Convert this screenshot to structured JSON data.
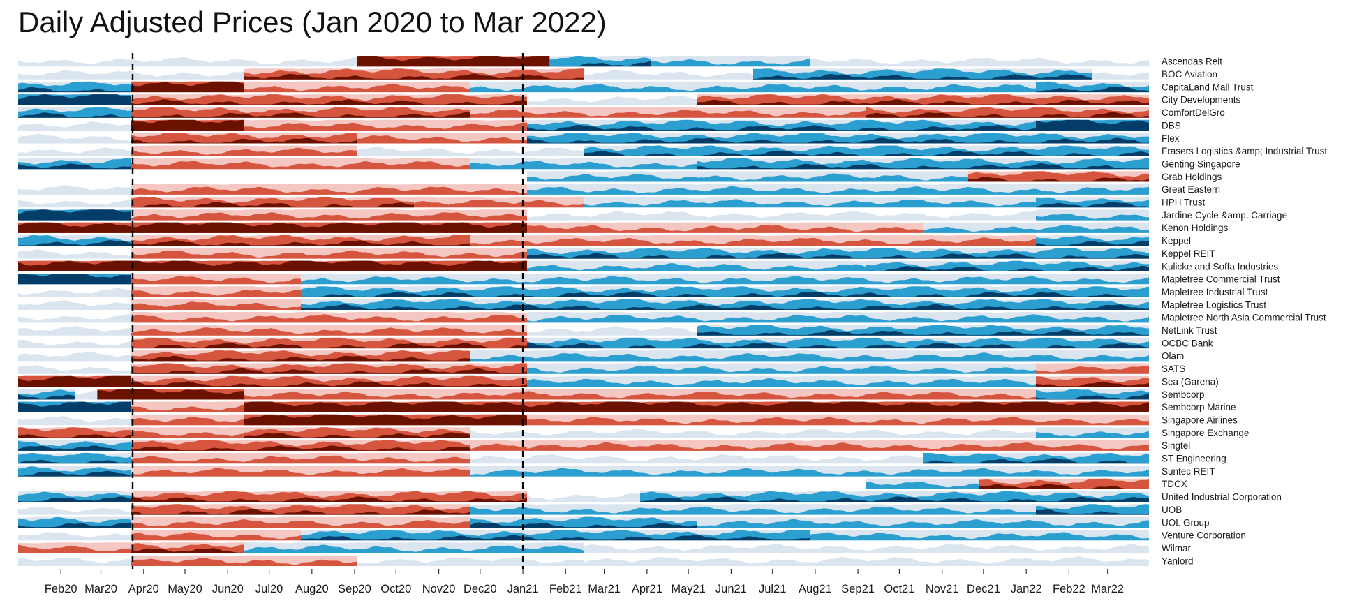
{
  "title": "Daily Adjusted Prices (Jan 2020 to Mar 2022)",
  "chart_data": {
    "type": "area",
    "subtype": "horizon",
    "x_range": [
      "2020-01-01",
      "2022-03-31"
    ],
    "x_ticks": [
      {
        "date": "2020-02-01",
        "label": "Feb20"
      },
      {
        "date": "2020-03-01",
        "label": "Mar20"
      },
      {
        "date": "2020-04-01",
        "label": "Apr20"
      },
      {
        "date": "2020-05-01",
        "label": "May20"
      },
      {
        "date": "2020-06-01",
        "label": "Jun20"
      },
      {
        "date": "2020-07-01",
        "label": "Jul20"
      },
      {
        "date": "2020-08-01",
        "label": "Aug20"
      },
      {
        "date": "2020-09-01",
        "label": "Sep20"
      },
      {
        "date": "2020-10-01",
        "label": "Oct20"
      },
      {
        "date": "2020-11-01",
        "label": "Nov20"
      },
      {
        "date": "2020-12-01",
        "label": "Dec20"
      },
      {
        "date": "2021-01-01",
        "label": "Jan21"
      },
      {
        "date": "2021-02-01",
        "label": "Feb21"
      },
      {
        "date": "2021-03-01",
        "label": "Mar21"
      },
      {
        "date": "2021-04-01",
        "label": "Apr21"
      },
      {
        "date": "2021-05-01",
        "label": "May21"
      },
      {
        "date": "2021-06-01",
        "label": "Jun21"
      },
      {
        "date": "2021-07-01",
        "label": "Jul21"
      },
      {
        "date": "2021-08-01",
        "label": "Aug21"
      },
      {
        "date": "2021-09-01",
        "label": "Sep21"
      },
      {
        "date": "2021-10-01",
        "label": "Oct21"
      },
      {
        "date": "2021-11-01",
        "label": "Nov21"
      },
      {
        "date": "2021-12-01",
        "label": "Dec21"
      },
      {
        "date": "2022-01-01",
        "label": "Jan22"
      },
      {
        "date": "2022-02-01",
        "label": "Feb22"
      },
      {
        "date": "2022-03-01",
        "label": "Mar22"
      }
    ],
    "reference_lines": [
      "2020-03-24",
      "2021-01-01"
    ],
    "colors": {
      "positive": [
        "#dbe5ef",
        "#2b9fcf",
        "#033d68"
      ],
      "negative": [
        "#f4c7c2",
        "#d6553e",
        "#6b1100"
      ]
    },
    "grid": false,
    "legend": "none",
    "series": [
      {
        "name": "Ascendas Reit",
        "segments": [
          [
            0,
            0.3,
            0
          ],
          [
            0.3,
            0.47,
            -3
          ],
          [
            0.47,
            0.56,
            2
          ],
          [
            0.56,
            0.7,
            1
          ],
          [
            0.7,
            1,
            0
          ]
        ]
      },
      {
        "name": "BOC Aviation",
        "segments": [
          [
            0,
            0.2,
            0
          ],
          [
            0.2,
            0.5,
            -2
          ],
          [
            0.5,
            0.65,
            0
          ],
          [
            0.65,
            0.95,
            2
          ],
          [
            0.95,
            1,
            0
          ]
        ]
      },
      {
        "name": "CapitaLand Mall Trust",
        "segments": [
          [
            0,
            0.1,
            2
          ],
          [
            0.1,
            0.2,
            -3
          ],
          [
            0.2,
            0.4,
            -1
          ],
          [
            0.4,
            0.9,
            1
          ],
          [
            0.9,
            1,
            2
          ]
        ]
      },
      {
        "name": "City Developments",
        "segments": [
          [
            0,
            0.1,
            3
          ],
          [
            0.1,
            0.45,
            -2
          ],
          [
            0.45,
            0.6,
            0
          ],
          [
            0.6,
            1,
            -2
          ]
        ]
      },
      {
        "name": "ComfortDelGro",
        "segments": [
          [
            0,
            0.1,
            2
          ],
          [
            0.1,
            0.4,
            -2
          ],
          [
            0.4,
            0.75,
            -1
          ],
          [
            0.75,
            1,
            -2
          ]
        ]
      },
      {
        "name": "DBS",
        "segments": [
          [
            0,
            0.1,
            0
          ],
          [
            0.1,
            0.2,
            -3
          ],
          [
            0.2,
            0.45,
            -1
          ],
          [
            0.45,
            0.9,
            2
          ],
          [
            0.9,
            1,
            3
          ]
        ]
      },
      {
        "name": "Flex",
        "segments": [
          [
            0,
            0.1,
            0
          ],
          [
            0.1,
            0.3,
            -2
          ],
          [
            0.3,
            0.45,
            -1
          ],
          [
            0.45,
            1,
            2
          ]
        ]
      },
      {
        "name": "Frasers Logistics &amp; Industrial Trust",
        "segments": [
          [
            0,
            0.1,
            0
          ],
          [
            0.1,
            0.3,
            -1
          ],
          [
            0.3,
            0.5,
            0
          ],
          [
            0.5,
            1,
            2
          ]
        ]
      },
      {
        "name": "Genting Singapore",
        "segments": [
          [
            0,
            0.1,
            2
          ],
          [
            0.1,
            0.4,
            -1
          ],
          [
            0.4,
            0.6,
            1
          ],
          [
            0.6,
            1,
            2
          ]
        ]
      },
      {
        "name": "Grab Holdings",
        "segments": [
          [
            0.45,
            0.6,
            1
          ],
          [
            0.6,
            0.84,
            1
          ],
          [
            0.84,
            1,
            -2
          ]
        ]
      },
      {
        "name": "Great Eastern",
        "segments": [
          [
            0,
            0.1,
            0
          ],
          [
            0.1,
            0.45,
            -1
          ],
          [
            0.45,
            1,
            1
          ]
        ]
      },
      {
        "name": "HPH Trust",
        "segments": [
          [
            0,
            0.1,
            0
          ],
          [
            0.1,
            0.35,
            -2
          ],
          [
            0.35,
            0.5,
            -1
          ],
          [
            0.5,
            0.9,
            1
          ],
          [
            0.9,
            1,
            2
          ]
        ]
      },
      {
        "name": "Jardine Cycle &amp; Carriage",
        "segments": [
          [
            0,
            0.1,
            3
          ],
          [
            0.1,
            0.45,
            -1
          ],
          [
            0.45,
            0.9,
            0
          ],
          [
            0.9,
            1,
            1
          ]
        ]
      },
      {
        "name": "Kenon Holdings",
        "segments": [
          [
            0,
            0.45,
            -3
          ],
          [
            0.45,
            0.8,
            -1
          ],
          [
            0.8,
            1,
            1
          ]
        ]
      },
      {
        "name": "Keppel",
        "segments": [
          [
            0,
            0.1,
            2
          ],
          [
            0.1,
            0.4,
            -2
          ],
          [
            0.4,
            0.9,
            -1
          ],
          [
            0.9,
            1,
            2
          ]
        ]
      },
      {
        "name": "Keppel REIT",
        "segments": [
          [
            0,
            0.1,
            0
          ],
          [
            0.1,
            0.45,
            -1
          ],
          [
            0.45,
            1,
            2
          ]
        ]
      },
      {
        "name": "Kulicke and Soffa Industries",
        "segments": [
          [
            0,
            0.45,
            -3
          ],
          [
            0.45,
            0.75,
            1
          ],
          [
            0.75,
            1,
            2
          ]
        ]
      },
      {
        "name": "Mapletree Commercial Trust",
        "segments": [
          [
            0,
            0.1,
            3
          ],
          [
            0.1,
            0.25,
            -1
          ],
          [
            0.25,
            1,
            1
          ]
        ]
      },
      {
        "name": "Mapletree Industrial Trust",
        "segments": [
          [
            0,
            0.1,
            0
          ],
          [
            0.1,
            0.25,
            -1
          ],
          [
            0.25,
            1,
            2
          ]
        ]
      },
      {
        "name": "Mapletree Logistics Trust",
        "segments": [
          [
            0,
            0.1,
            0
          ],
          [
            0.1,
            0.25,
            -1
          ],
          [
            0.25,
            1,
            2
          ]
        ]
      },
      {
        "name": "Mapletree North Asia Commercial Trust",
        "segments": [
          [
            0,
            0.1,
            0
          ],
          [
            0.1,
            0.45,
            -1
          ],
          [
            0.45,
            1,
            1
          ]
        ]
      },
      {
        "name": "NetLink Trust",
        "segments": [
          [
            0,
            0.1,
            0
          ],
          [
            0.1,
            0.45,
            -1
          ],
          [
            0.45,
            0.6,
            0
          ],
          [
            0.6,
            1,
            2
          ]
        ]
      },
      {
        "name": "OCBC Bank",
        "segments": [
          [
            0,
            0.1,
            0
          ],
          [
            0.1,
            0.45,
            -2
          ],
          [
            0.45,
            1,
            2
          ]
        ]
      },
      {
        "name": "Olam",
        "segments": [
          [
            0,
            0.1,
            0
          ],
          [
            0.1,
            0.4,
            -2
          ],
          [
            0.4,
            1,
            1
          ]
        ]
      },
      {
        "name": "SATS",
        "segments": [
          [
            0,
            0.1,
            0
          ],
          [
            0.1,
            0.45,
            -2
          ],
          [
            0.45,
            0.9,
            1
          ],
          [
            0.9,
            1,
            -1
          ]
        ]
      },
      {
        "name": "Sea (Garena)",
        "segments": [
          [
            0,
            0.1,
            -3
          ],
          [
            0.1,
            0.45,
            -2
          ],
          [
            0.45,
            0.9,
            1
          ],
          [
            0.9,
            1,
            -2
          ]
        ]
      },
      {
        "name": "Sembcorp",
        "segments": [
          [
            0,
            0.05,
            2
          ],
          [
            0.05,
            0.07,
            0
          ],
          [
            0.07,
            0.2,
            -3
          ],
          [
            0.2,
            0.9,
            -1
          ],
          [
            0.9,
            1,
            2
          ]
        ]
      },
      {
        "name": "Sembcorp Marine",
        "segments": [
          [
            0,
            0.1,
            3
          ],
          [
            0.1,
            0.2,
            -1
          ],
          [
            0.2,
            1,
            -3
          ]
        ]
      },
      {
        "name": "Singapore Airlines",
        "segments": [
          [
            0,
            0.1,
            0
          ],
          [
            0.1,
            0.2,
            -1
          ],
          [
            0.2,
            0.45,
            -3
          ],
          [
            0.45,
            1,
            -1
          ]
        ]
      },
      {
        "name": "Singapore Exchange",
        "segments": [
          [
            0,
            0.1,
            -2
          ],
          [
            0.1,
            0.2,
            -1
          ],
          [
            0.2,
            0.4,
            -2
          ],
          [
            0.4,
            0.9,
            0
          ],
          [
            0.9,
            1,
            1
          ]
        ]
      },
      {
        "name": "Singtel",
        "segments": [
          [
            0,
            0.1,
            2
          ],
          [
            0.1,
            0.4,
            -2
          ],
          [
            0.4,
            0.45,
            -1
          ],
          [
            0.45,
            1,
            -1
          ]
        ]
      },
      {
        "name": "ST Engineering",
        "segments": [
          [
            0,
            0.1,
            2
          ],
          [
            0.1,
            0.4,
            -1
          ],
          [
            0.4,
            0.8,
            0
          ],
          [
            0.8,
            1,
            2
          ]
        ]
      },
      {
        "name": "Suntec REIT",
        "segments": [
          [
            0,
            0.1,
            2
          ],
          [
            0.1,
            0.4,
            -1
          ],
          [
            0.4,
            1,
            1
          ]
        ]
      },
      {
        "name": "TDCX",
        "segments": [
          [
            0.75,
            0.85,
            1
          ],
          [
            0.85,
            1,
            -2
          ]
        ]
      },
      {
        "name": "United Industrial Corporation",
        "segments": [
          [
            0,
            0.1,
            2
          ],
          [
            0.1,
            0.45,
            -2
          ],
          [
            0.45,
            0.55,
            0
          ],
          [
            0.55,
            1,
            2
          ]
        ]
      },
      {
        "name": "UOB",
        "segments": [
          [
            0,
            0.1,
            0
          ],
          [
            0.1,
            0.4,
            -2
          ],
          [
            0.4,
            0.9,
            1
          ],
          [
            0.9,
            1,
            2
          ]
        ]
      },
      {
        "name": "UOL Group",
        "segments": [
          [
            0,
            0.1,
            2
          ],
          [
            0.1,
            0.4,
            -1
          ],
          [
            0.4,
            0.6,
            2
          ],
          [
            0.6,
            1,
            1
          ]
        ]
      },
      {
        "name": "Venture Corporation",
        "segments": [
          [
            0,
            0.1,
            0
          ],
          [
            0.1,
            0.25,
            -1
          ],
          [
            0.25,
            0.7,
            2
          ],
          [
            0.7,
            1,
            1
          ]
        ]
      },
      {
        "name": "Wilmar",
        "segments": [
          [
            0,
            0.1,
            -1
          ],
          [
            0.1,
            0.2,
            -2
          ],
          [
            0.2,
            0.5,
            1
          ],
          [
            0.5,
            1,
            0
          ]
        ]
      },
      {
        "name": "Yanlord",
        "segments": [
          [
            0,
            0.1,
            0
          ],
          [
            0.1,
            0.3,
            -1
          ],
          [
            0.3,
            0.5,
            0
          ],
          [
            0.5,
            1,
            0
          ]
        ]
      }
    ]
  }
}
